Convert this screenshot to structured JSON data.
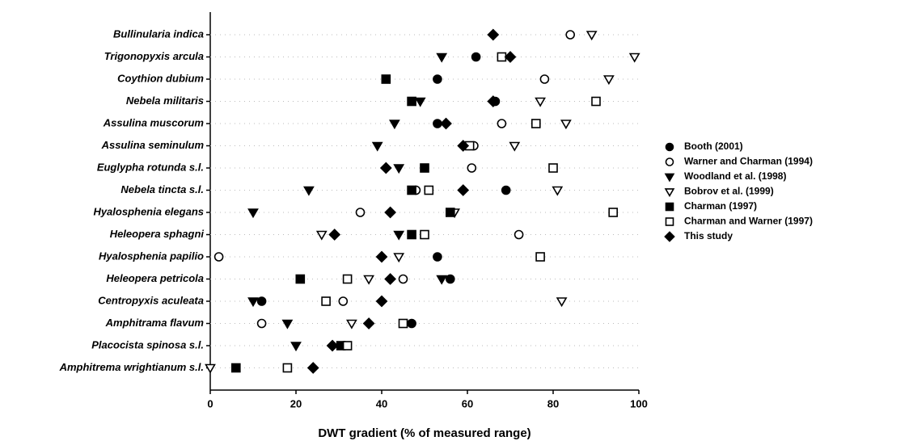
{
  "chart_data": {
    "type": "dot",
    "xlabel": "DWT gradient (% of measured range)",
    "categories": [
      "Bullinularia indica",
      "Trigonopyxis arcula",
      "Coythion dubium",
      "Nebela militaris",
      "Assulina muscorum",
      "Assulina seminulum",
      "Euglypha rotunda s.l.",
      "Nebela tincta s.l.",
      "Hyalosphenia elegans",
      "Heleopera sphagni",
      "Hyalosphenia papilio",
      "Heleopera petricola",
      "Centropyxis aculeata",
      "Amphitrama flavum",
      "Placocista spinosa s.l.",
      "Amphitrema wrightianum s.l."
    ],
    "xlim": [
      0,
      100
    ],
    "xticks": [
      0,
      20,
      40,
      60,
      80,
      100
    ],
    "grid": true,
    "series": [
      {
        "name": "Booth (2001)",
        "color": "#000000",
        "marker": "circle",
        "filled": true,
        "values": [
          null,
          62,
          53,
          66.5,
          53,
          null,
          null,
          69,
          null,
          null,
          53,
          56,
          12,
          47,
          null,
          null
        ]
      },
      {
        "name": "Warner and Charman (1994)",
        "color": "#000000",
        "marker": "circle",
        "filled": false,
        "values": [
          84,
          null,
          78,
          null,
          68,
          61.5,
          61,
          48,
          35,
          72,
          2,
          45,
          31,
          12,
          null,
          null
        ]
      },
      {
        "name": "Woodland et al. (1998)",
        "color": "#000000",
        "marker": "triangle-down",
        "filled": true,
        "values": [
          null,
          54,
          null,
          49,
          43,
          39,
          44,
          23,
          10,
          44,
          null,
          54,
          10,
          18,
          20,
          null
        ]
      },
      {
        "name": "Bobrov et al. (1999)",
        "color": "#000000",
        "marker": "triangle-down",
        "filled": false,
        "values": [
          89,
          99,
          93,
          77,
          83,
          71,
          null,
          81,
          57,
          26,
          44,
          37,
          82,
          33,
          null,
          0
        ]
      },
      {
        "name": "Charman (1997)",
        "color": "#000000",
        "marker": "square",
        "filled": true,
        "values": [
          null,
          null,
          41,
          47,
          null,
          null,
          50,
          47,
          56,
          47,
          null,
          21,
          null,
          null,
          30.5,
          6
        ]
      },
      {
        "name": "Charman and Warner (1997)",
        "color": "#000000",
        "marker": "square",
        "filled": false,
        "values": [
          null,
          68,
          null,
          90,
          76,
          60.5,
          80,
          51,
          94,
          50,
          77,
          32,
          27,
          45,
          32,
          18
        ]
      },
      {
        "name": "This study",
        "color": "#000000",
        "marker": "diamond",
        "filled": true,
        "values": [
          66,
          70,
          null,
          66,
          55,
          59,
          41,
          59,
          42,
          29,
          40,
          42,
          40,
          37,
          28.5,
          24
        ]
      }
    ]
  }
}
